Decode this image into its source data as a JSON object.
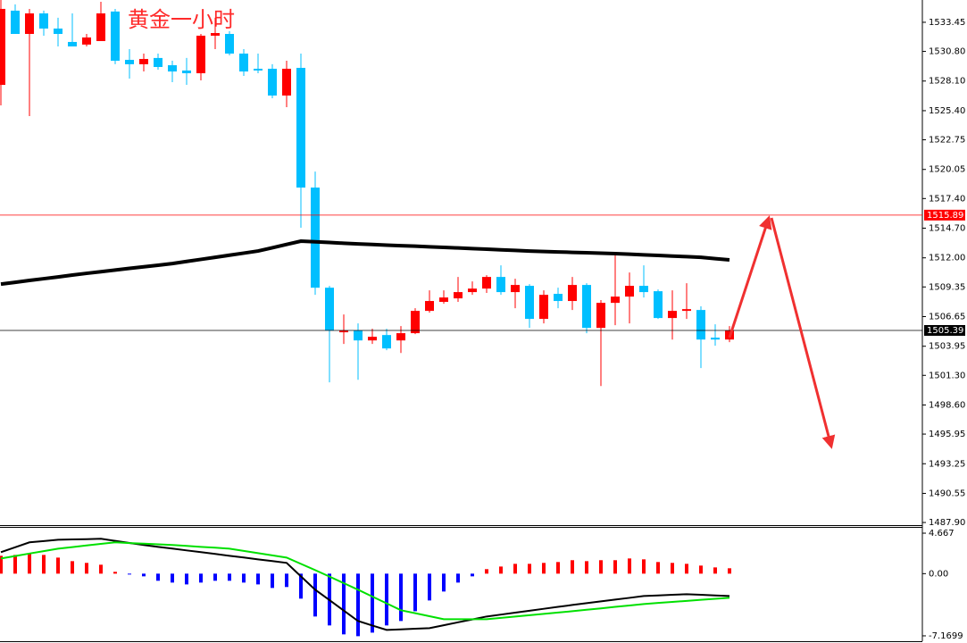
{
  "chart_data": [
    {
      "type": "candlestick",
      "title": "黄金一小时",
      "up_color": "#ff0000",
      "down_color": "#00bfff",
      "ylim": [
        1487.66,
        1535.48
      ],
      "yticks": [
        1533.45,
        {
          "value": 1530.8,
          "label": "1530.80"
        },
        {
          "value": 1528.1,
          "label": "1528.10"
        },
        {
          "value": 1525.4,
          "label": "1525.40"
        },
        1522.75,
        1520.05,
        {
          "value": 1517.4,
          "label": "1517.40"
        },
        {
          "value": 1514.7,
          "label": "1514.70"
        },
        {
          "value": 1512,
          "label": "1512.00"
        },
        1509.35,
        1506.65,
        1503.95,
        {
          "value": 1501.3,
          "label": "1501.30"
        },
        {
          "value": 1498.6,
          "label": "1498.60"
        },
        1495.95,
        1493.25,
        1490.55,
        {
          "value": 1487.9,
          "label": "1487.90"
        }
      ],
      "open": [
        1527.75,
        1534.51,
        1532.39,
        1534.26,
        1532.88,
        1531.66,
        1531.42,
        1531.74,
        1534.43,
        1530.03,
        1529.63,
        1530.2,
        1529.54,
        1529.06,
        1528.81,
        1532.23,
        1532.39,
        1530.6,
        1529.22,
        1529.22,
        1526.78,
        1529.3,
        1518.4,
        1509.28,
        1505.22,
        1505.38,
        1504.48,
        1504.97,
        1504.48,
        1505.14,
        1507.17,
        1507.99,
        1508.31,
        1508.88,
        1509.2,
        1510.26,
        1508.88,
        1509.45,
        1506.44,
        1508.72,
        1508.07,
        1509.53,
        1505.62,
        1507.9,
        1508.47,
        1509.45,
        1508.96,
        1506.52,
        1507.17,
        1507.25,
        1504.73,
        1504.56
      ],
      "high": [
        1535.48,
        1535.08,
        1534.67,
        1534.51,
        1533.86,
        1534.26,
        1532.39,
        1535.32,
        1534.67,
        1531.01,
        1530.6,
        1530.6,
        1529.95,
        1530.2,
        1532.39,
        1533.86,
        1532.64,
        1531.01,
        1530.6,
        1529.63,
        1529.95,
        1530.6,
        1519.86,
        1509.45,
        1506.84,
        1506.03,
        1505.54,
        1505.54,
        1505.79,
        1507.41,
        1509.04,
        1509.04,
        1510.26,
        1509.85,
        1510.42,
        1511.32,
        1510.1,
        1509.61,
        1509.04,
        1509.28,
        1510.26,
        1509.69,
        1508.15,
        1512.46,
        1510.67,
        1511.32,
        1509.12,
        1509.04,
        1509.69,
        1507.58,
        1505.95,
        1505.79
      ],
      "low": [
        1525.88,
        1532.39,
        1524.91,
        1532.23,
        1531.25,
        1531.25,
        1531.25,
        1531.74,
        1529.63,
        1528.32,
        1528.97,
        1529.14,
        1528.0,
        1527.75,
        1528.16,
        1531.01,
        1530.44,
        1528.57,
        1528.81,
        1526.53,
        1525.72,
        1514.74,
        1508.63,
        1500.66,
        1504.16,
        1500.9,
        1504.16,
        1503.59,
        1503.34,
        1505.05,
        1507.01,
        1507.82,
        1507.99,
        1508.63,
        1508.8,
        1508.63,
        1507.41,
        1505.62,
        1506.03,
        1507.41,
        1507.25,
        1505.14,
        1500.33,
        1505.87,
        1506.03,
        1508.39,
        1506.44,
        1504.56,
        1506.44,
        1501.96,
        1504.0,
        1504.32
      ],
      "close": [
        1534.67,
        1532.39,
        1534.26,
        1532.88,
        1532.39,
        1531.25,
        1532.07,
        1534.26,
        1529.95,
        1529.63,
        1530.11,
        1529.38,
        1528.97,
        1528.81,
        1532.23,
        1532.47,
        1530.6,
        1528.97,
        1529.06,
        1526.78,
        1529.22,
        1518.4,
        1509.28,
        1505.38,
        1505.38,
        1504.48,
        1504.81,
        1503.75,
        1505.14,
        1507.17,
        1508.07,
        1508.39,
        1508.88,
        1509.2,
        1510.26,
        1508.88,
        1509.53,
        1506.44,
        1508.63,
        1508.07,
        1509.53,
        1505.62,
        1507.9,
        1508.47,
        1509.45,
        1508.88,
        1506.52,
        1507.17,
        1507.33,
        1504.56,
        1504.56,
        1505.38
      ],
      "series": [
        {
          "color": "#000000",
          "values": [
            1509.61,
            1509.77,
            1509.94,
            1510.1,
            1510.26,
            1510.43,
            1510.59,
            1510.74,
            1510.89,
            1511.04,
            1511.18,
            1511.33,
            1511.48,
            1511.67,
            1511.86,
            1512.05,
            1512.24,
            1512.43,
            1512.62,
            1512.92,
            1513.22,
            1513.52,
            1513.46,
            1513.4,
            1513.33,
            1513.27,
            1513.22,
            1513.16,
            1513.11,
            1513.06,
            1513.0,
            1512.95,
            1512.9,
            1512.84,
            1512.79,
            1512.73,
            1512.68,
            1512.62,
            1512.58,
            1512.54,
            1512.5,
            1512.46,
            1512.42,
            1512.38,
            1512.33,
            1512.27,
            1512.22,
            1512.16,
            1512.11,
            1512.05,
            1511.93,
            1511.81
          ]
        }
      ],
      "hlines": [
        {
          "value": 1515.89,
          "color": "#ff0000"
        },
        {
          "value": 1505.39,
          "color": "#000000"
        }
      ]
    },
    {
      "type": "macd",
      "up_color": "#ff0000",
      "down_color": "#0000ff",
      "ylim": [
        -7.79,
        5.39
      ],
      "yticks": [
        4.667,
        {
          "value": 0,
          "label": "0.00"
        },
        -7.1699
      ],
      "values": [
        2.06,
        2.16,
        2.27,
        2.16,
        1.85,
        1.44,
        1.24,
        1.03,
        0.21,
        -0.1,
        -0.31,
        -0.82,
        -1.03,
        -1.24,
        -1.03,
        -0.82,
        -0.82,
        -1.03,
        -1.24,
        -1.65,
        -1.54,
        -2.88,
        -4.94,
        -5.97,
        -7.0,
        -7.21,
        -6.8,
        -5.97,
        -5.46,
        -4.33,
        -3.09,
        -2.06,
        -1.03,
        -0.31,
        0.52,
        0.82,
        1.13,
        1.13,
        1.24,
        1.34,
        1.55,
        1.44,
        1.55,
        1.55,
        1.75,
        1.65,
        1.34,
        1.24,
        1.13,
        0.93,
        0.72,
        0.62
      ],
      "series": [
        {
          "color": "#000000",
          "values": [
            2.47,
            3.04,
            3.61,
            3.76,
            3.91,
            3.95,
            3.98,
            4.02,
            3.78,
            3.54,
            3.3,
            3.09,
            2.89,
            2.68,
            2.48,
            2.27,
            2.06,
            1.86,
            1.65,
            1.45,
            1.24,
            -0.31,
            -1.85,
            -3.05,
            -4.26,
            -5.46,
            -5.98,
            -6.49,
            -6.42,
            -6.35,
            -6.28,
            -5.95,
            -5.61,
            -5.28,
            -4.94,
            -4.72,
            -4.5,
            -4.28,
            -4.05,
            -3.83,
            -3.61,
            -3.4,
            -3.2,
            -2.99,
            -2.79,
            -2.58,
            -2.51,
            -2.44,
            -2.37,
            -2.44,
            -2.51,
            -2.58
          ]
        },
        {
          "color": "#00e000",
          "values": [
            1.75,
            2.03,
            2.32,
            2.6,
            2.88,
            3.06,
            3.25,
            3.43,
            3.61,
            3.53,
            3.46,
            3.38,
            3.3,
            3.2,
            3.09,
            2.99,
            2.88,
            2.62,
            2.37,
            2.11,
            1.85,
            1.13,
            0.41,
            -0.34,
            -1.1,
            -1.85,
            -2.64,
            -3.43,
            -4.22,
            -4.56,
            -4.91,
            -5.25,
            -5.25,
            -5.25,
            -5.25,
            -5.1,
            -4.94,
            -4.79,
            -4.64,
            -4.48,
            -4.33,
            -4.16,
            -4.0,
            -3.83,
            -3.67,
            -3.5,
            -3.38,
            -3.26,
            -3.14,
            -3.02,
            -2.9,
            -2.78
          ]
        }
      ]
    }
  ]
}
